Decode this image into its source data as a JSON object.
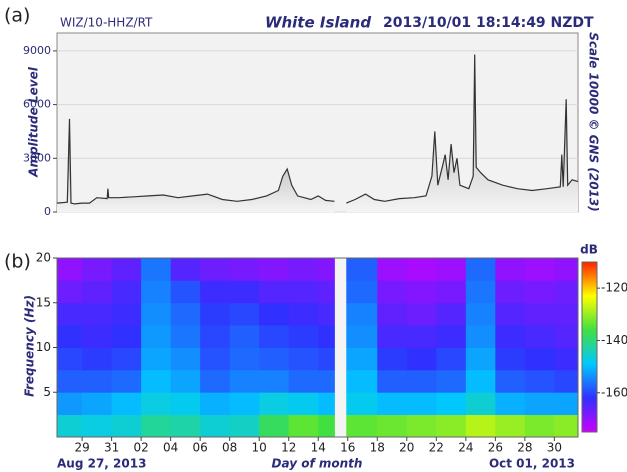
{
  "chart_data": [
    {
      "type": "line",
      "panel_label": "(a)",
      "station": "WIZ/10-HHZ/RT",
      "title": "White Island",
      "subtitle": "2013/10/01 18:14:49 NZDT",
      "ylabel": "Amplitude Level",
      "y2label": "Scale 10000 © GNS (2013)",
      "x": [
        0.3,
        1.0,
        1.15,
        1.25,
        1.5,
        2.0,
        2.5,
        3.0,
        3.7,
        3.75,
        3.8,
        4.5,
        5.5,
        6.5,
        7.5,
        8.5,
        9.5,
        10.5,
        11.5,
        12.5,
        13.5,
        14.5,
        15.3,
        15.6,
        15.9,
        16.2,
        16.6,
        17.5,
        18.0,
        18.5,
        19.1,
        19.5,
        19.9,
        20.5,
        21.2,
        21.8,
        22.5,
        23.5,
        24.5,
        25.3,
        25.7,
        25.9,
        26.1,
        26.4,
        26.6,
        26.8,
        27.0,
        27.2,
        27.4,
        27.6,
        28.2,
        28.5,
        28.6,
        28.7,
        29.0,
        29.5,
        30.5,
        31.5,
        32.5,
        33.5,
        34.4,
        34.5,
        34.6,
        34.8,
        34.9,
        35.2,
        35.6
      ],
      "values": [
        500,
        550,
        5200,
        500,
        450,
        500,
        500,
        800,
        750,
        1300,
        800,
        800,
        850,
        900,
        950,
        800,
        900,
        1000,
        700,
        600,
        700,
        900,
        1200,
        2000,
        2400,
        1500,
        900,
        700,
        900,
        650,
        600,
        null,
        500,
        700,
        1000,
        700,
        600,
        750,
        800,
        900,
        2000,
        4500,
        1500,
        2500,
        3200,
        1800,
        3800,
        2200,
        3000,
        1500,
        1300,
        2000,
        8800,
        2500,
        2200,
        1800,
        1500,
        1300,
        1200,
        1300,
        1400,
        3200,
        1400,
        6300,
        1500,
        1800,
        1700
      ],
      "color": "#333333",
      "xlim": [
        0.3,
        35.6
      ],
      "ylim": [
        0,
        10000
      ],
      "yticks": [
        0,
        3000,
        6000,
        9000
      ],
      "grid": true
    },
    {
      "type": "heatmap",
      "panel_label": "(b)",
      "ylabel": "Frequency (Hz)",
      "xlabel": "Day of month",
      "x_start_label": "Aug 27, 2013",
      "x_end_label": "Oct 01, 2013",
      "xlim": [
        0.3,
        35.6
      ],
      "ylim": [
        0,
        20
      ],
      "xticks": [
        {
          "value": 2,
          "label": "29"
        },
        {
          "value": 4,
          "label": "31"
        },
        {
          "value": 6,
          "label": "02"
        },
        {
          "value": 8,
          "label": "04"
        },
        {
          "value": 10,
          "label": "06"
        },
        {
          "value": 12,
          "label": "08"
        },
        {
          "value": 14,
          "label": "10"
        },
        {
          "value": 16,
          "label": "12"
        },
        {
          "value": 18,
          "label": "14"
        },
        {
          "value": 20,
          "label": "16"
        },
        {
          "value": 22,
          "label": "18"
        },
        {
          "value": 24,
          "label": "20"
        },
        {
          "value": 26,
          "label": "22"
        },
        {
          "value": 28,
          "label": "24"
        },
        {
          "value": 30,
          "label": "26"
        },
        {
          "value": 32,
          "label": "28"
        },
        {
          "value": 34,
          "label": "30"
        }
      ],
      "yticks": [
        5,
        10,
        15,
        20
      ],
      "x_edges": [
        0.3,
        2,
        4,
        6,
        8,
        10,
        12,
        14,
        16,
        18,
        19.1,
        19.9,
        22,
        24,
        26,
        28,
        30,
        32,
        34,
        35.6
      ],
      "y_edges": [
        0,
        2.5,
        5,
        7.5,
        10,
        12.5,
        15,
        17.5,
        20
      ],
      "values": [
        [
          -146,
          -147,
          -146,
          -142,
          -143,
          -146,
          -145,
          -138,
          -134,
          -136,
          null,
          -134,
          -133,
          -132,
          -131,
          -128,
          -130,
          -132,
          -131
        ],
        [
          -153,
          -152,
          -150,
          -147,
          -148,
          -151,
          -150,
          -147,
          -148,
          -150,
          null,
          -148,
          -150,
          -150,
          -149,
          -146,
          -151,
          -152,
          -152
        ],
        [
          -158,
          -158,
          -157,
          -150,
          -152,
          -157,
          -155,
          -155,
          -157,
          -157,
          null,
          -150,
          -158,
          -158,
          -157,
          -150,
          -158,
          -159,
          -160
        ],
        [
          -160,
          -161,
          -160,
          -152,
          -154,
          -159,
          -157,
          -158,
          -159,
          -160,
          null,
          -152,
          -161,
          -162,
          -160,
          -152,
          -161,
          -162,
          -163
        ],
        [
          -162,
          -163,
          -162,
          -153,
          -156,
          -160,
          -158,
          -160,
          -161,
          -162,
          null,
          -154,
          -164,
          -164,
          -163,
          -154,
          -163,
          -164,
          -165
        ],
        [
          -164,
          -164,
          -163,
          -154,
          -157,
          -161,
          -160,
          -162,
          -163,
          -164,
          null,
          -155,
          -166,
          -167,
          -165,
          -155,
          -165,
          -166,
          -166
        ],
        [
          -167,
          -166,
          -164,
          -155,
          -159,
          -163,
          -163,
          -165,
          -165,
          -166,
          null,
          -157,
          -168,
          -169,
          -168,
          -156,
          -167,
          -168,
          -167
        ],
        [
          -170,
          -168,
          -166,
          -156,
          -165,
          -167,
          -168,
          -169,
          -168,
          -169,
          null,
          -158,
          -171,
          -172,
          -171,
          -157,
          -170,
          -171,
          -170
        ]
      ],
      "colorbar_label": "dB",
      "clim": [
        -175,
        -110
      ],
      "cticks": [
        -160,
        -140,
        -120
      ],
      "colormap": [
        "#cc00ff",
        "#3030ff",
        "#00c8ff",
        "#40e040",
        "#ffff00",
        "#ff2000"
      ]
    }
  ]
}
